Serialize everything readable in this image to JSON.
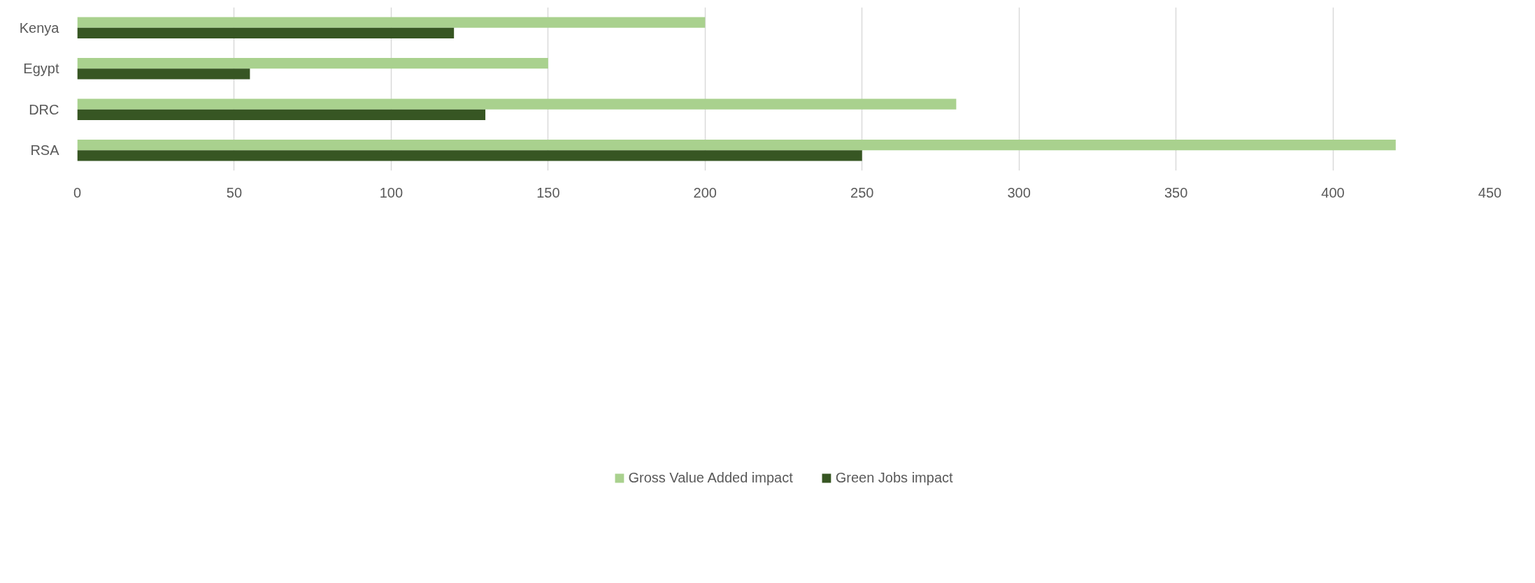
{
  "chart_data": {
    "type": "bar",
    "orientation": "horizontal",
    "categories": [
      "Kenya",
      "Egypt",
      "DRC",
      "RSA"
    ],
    "series": [
      {
        "name": "Gross Value Added impact",
        "color": "#a9d18e",
        "values": [
          200,
          150,
          280,
          420
        ]
      },
      {
        "name": "Green Jobs impact",
        "color": "#375623",
        "values": [
          120,
          55,
          130,
          250
        ]
      }
    ],
    "xlim": [
      0,
      450
    ],
    "xticks": [
      0,
      50,
      100,
      150,
      200,
      250,
      300,
      350,
      400,
      450
    ],
    "grid": "x",
    "legend": "bottom"
  }
}
